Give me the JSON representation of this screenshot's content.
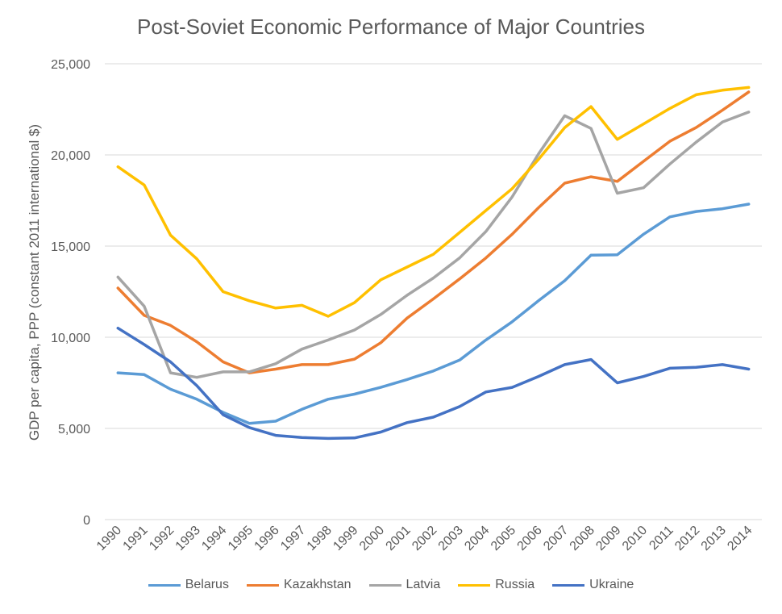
{
  "chart_data": {
    "type": "line",
    "title": "Post-Soviet Economic Performance of Major Countries",
    "xlabel": "",
    "ylabel": "GDP per capita, PPP (constant 2011 international $)",
    "ylim": [
      0,
      25000
    ],
    "yticks": [
      0,
      5000,
      10000,
      15000,
      20000,
      25000
    ],
    "ytick_labels": [
      "0",
      "5,000",
      "10,000",
      "15,000",
      "20,000",
      "25,000"
    ],
    "grid": true,
    "legend_position": "bottom",
    "categories": [
      "1990",
      "1991",
      "1992",
      "1993",
      "1994",
      "1995",
      "1996",
      "1997",
      "1998",
      "1999",
      "2000",
      "2001",
      "2002",
      "2003",
      "2004",
      "2005",
      "2006",
      "2007",
      "2008",
      "2009",
      "2010",
      "2011",
      "2012",
      "2013",
      "2014"
    ],
    "series": [
      {
        "name": "Belarus",
        "color": "#5B9BD5",
        "values": [
          8050,
          7950,
          7150,
          6600,
          5880,
          5280,
          5400,
          6050,
          6600,
          6880,
          7250,
          7680,
          8150,
          8750,
          9850,
          10850,
          12000,
          13100,
          14500,
          14520,
          15650,
          16600,
          16900,
          17050,
          17300
        ]
      },
      {
        "name": "Kazakhstan",
        "color": "#ED7D31",
        "values": [
          12700,
          11200,
          10650,
          9750,
          8650,
          8050,
          8250,
          8500,
          8500,
          8800,
          9700,
          11050,
          12100,
          13200,
          14350,
          15650,
          17100,
          18450,
          18800,
          18550,
          19650,
          20750,
          21500,
          22450,
          23450
        ]
      },
      {
        "name": "Latvia",
        "color": "#A5A5A5",
        "values": [
          13300,
          11700,
          8050,
          7800,
          8100,
          8100,
          8550,
          9350,
          9850,
          10400,
          11250,
          12300,
          13250,
          14350,
          15800,
          17700,
          20050,
          22150,
          21450,
          17900,
          18200,
          19500,
          20700,
          21800,
          22350
        ]
      },
      {
        "name": "Russia",
        "color": "#FFC000",
        "values": [
          19350,
          18350,
          15600,
          14300,
          12500,
          12000,
          11600,
          11750,
          11150,
          11900,
          13150,
          13850,
          14550,
          15750,
          16950,
          18150,
          19750,
          21500,
          22650,
          20850,
          21700,
          22550,
          23300,
          23550,
          23700
        ]
      },
      {
        "name": "Ukraine",
        "color": "#4472C4",
        "values": [
          10500,
          9600,
          8650,
          7350,
          5750,
          5050,
          4620,
          4500,
          4450,
          4480,
          4800,
          5320,
          5620,
          6200,
          7000,
          7250,
          7850,
          8500,
          8780,
          7500,
          7850,
          8300,
          8350,
          8500,
          8250
        ]
      }
    ]
  }
}
